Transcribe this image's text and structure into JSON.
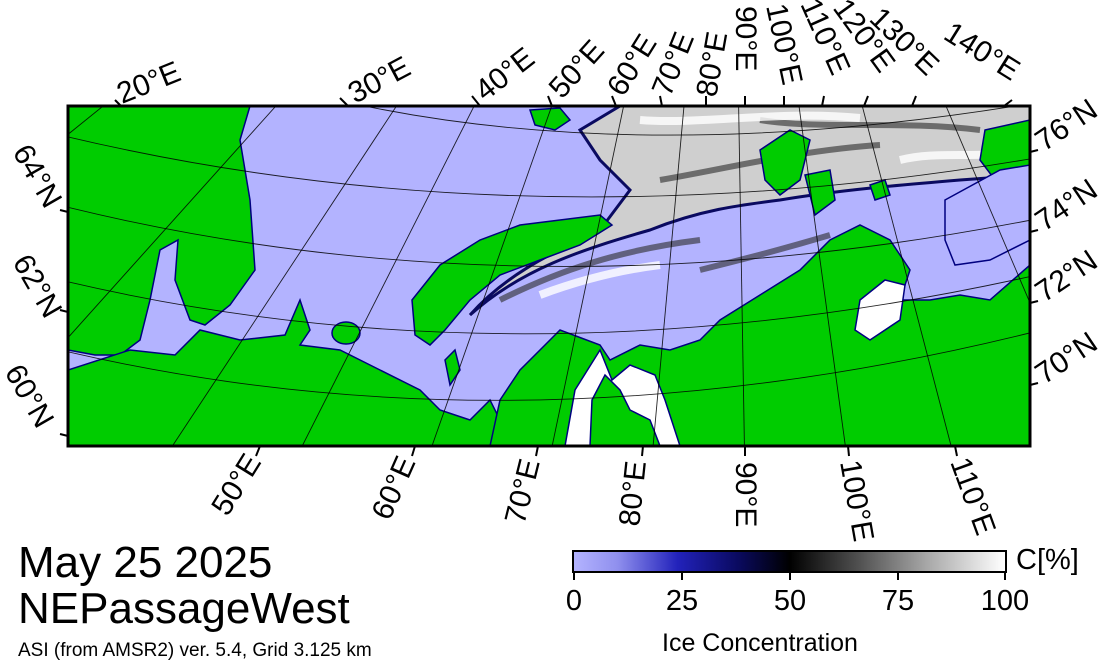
{
  "map": {
    "title": "May 25 2025",
    "region": "NEPassageWest",
    "product": "ASI (from AMSR2) ver. 5.4,  Grid 3.125 km",
    "colors": {
      "ocean": "#b3b3ff",
      "land": "#00cc00",
      "ice_low": "#0a0a60",
      "ice_mid": "#000000",
      "ice_high": "#ffffff",
      "coast": "#000080"
    },
    "top_longitude_labels": [
      "20°E",
      "30°E",
      "40°E",
      "50°E",
      "60°E",
      "70°E",
      "80°E",
      "90°E",
      "100°E",
      "110°E",
      "120°E",
      "130°E",
      "140°E"
    ],
    "bottom_longitude_labels": [
      "50°E",
      "60°E",
      "70°E",
      "80°E",
      "90°E",
      "100°E",
      "110°E"
    ],
    "left_latitude_labels": [
      "64°N",
      "62°N",
      "60°N"
    ],
    "right_latitude_labels": [
      "76°N",
      "74°N",
      "72°N",
      "70°N"
    ]
  },
  "colorbar": {
    "unit": "C[%]",
    "title": "Ice Concentration",
    "ticks": [
      "0",
      "25",
      "50",
      "75",
      "100"
    ]
  }
}
